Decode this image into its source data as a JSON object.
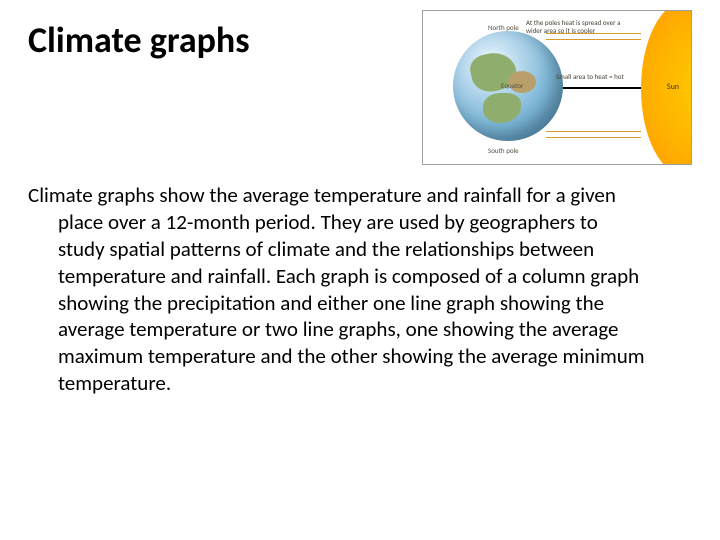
{
  "title": "Climate graphs",
  "body": "Climate graphs show the average temperature and rainfall for a given place over a 12-month period. They are used by geographers to study spatial patterns of climate and the relationships between temperature and rainfall. Each graph is composed of a column graph showing the precipitation and either one line graph showing the average temperature or two line graphs, one showing the average maximum temperature and the other showing the average minimum temperature.",
  "diagram": {
    "labels": {
      "north_pole": "North pole",
      "equator": "Equator",
      "south_pole": "South pole",
      "sun": "Sun",
      "top_text": "At the poles heat is spread over a wider area so it is cooler",
      "mid_text": "Small area to heat = hot"
    },
    "colors": {
      "globe_ocean": "#7fb8d8",
      "globe_land_green": "#8fae6e",
      "globe_land_tan": "#b9a06a",
      "sun_core": "#ffd500",
      "sun_edge": "#ff9800",
      "ray": "#d89b2a",
      "border": "#9aa0a6",
      "background": "#ffffff"
    }
  }
}
